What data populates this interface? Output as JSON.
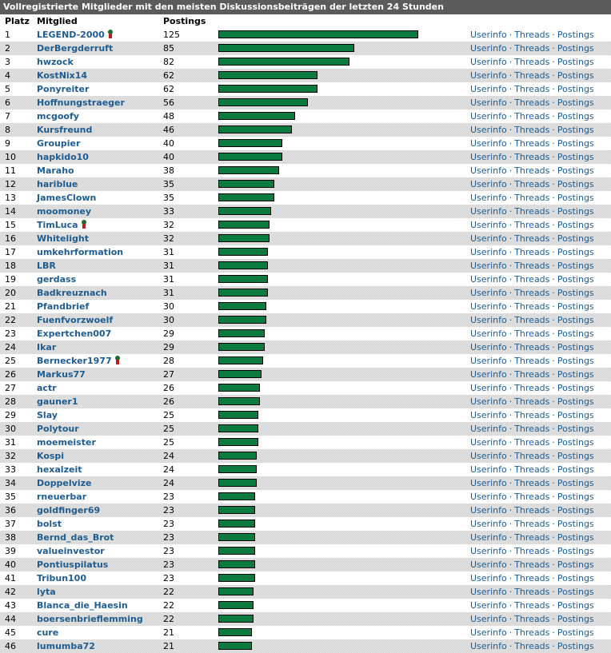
{
  "header": {
    "title": "Vollregistrierte Mitglieder mit den meisten Diskussionsbeiträgen der letzten 24 Stunden",
    "col_rank": "Platz",
    "col_member": "Mitglied",
    "col_posts": "Postings"
  },
  "links": {
    "userinfo": "Userinfo",
    "threads": "Threads",
    "postings": "Postings",
    "separator": "·"
  },
  "colors": {
    "bar": "#0a7a3f",
    "link": "#1f5c8f",
    "title_bg": "#5b5b5b"
  },
  "award_icon": "medal-ribbon-icon",
  "rows": [
    {
      "rank": "1",
      "name": "LEGEND-2000",
      "posts": 125,
      "award": true
    },
    {
      "rank": "2",
      "name": "DerBergderruft",
      "posts": 85,
      "award": false
    },
    {
      "rank": "3",
      "name": "hwzock",
      "posts": 82,
      "award": false
    },
    {
      "rank": "4",
      "name": "KostNix14",
      "posts": 62,
      "award": false
    },
    {
      "rank": "5",
      "name": "Ponyreiter",
      "posts": 62,
      "award": false
    },
    {
      "rank": "6",
      "name": "Hoffnungstraeger",
      "posts": 56,
      "award": false
    },
    {
      "rank": "7",
      "name": "mcgoofy",
      "posts": 48,
      "award": false
    },
    {
      "rank": "8",
      "name": "Kursfreund",
      "posts": 46,
      "award": false
    },
    {
      "rank": "9",
      "name": "Groupier",
      "posts": 40,
      "award": false
    },
    {
      "rank": "10",
      "name": "hapkido10",
      "posts": 40,
      "award": false
    },
    {
      "rank": "11",
      "name": "Maraho",
      "posts": 38,
      "award": false
    },
    {
      "rank": "12",
      "name": "hariblue",
      "posts": 35,
      "award": false
    },
    {
      "rank": "13",
      "name": "JamesClown",
      "posts": 35,
      "award": false
    },
    {
      "rank": "14",
      "name": "moomoney",
      "posts": 33,
      "award": false
    },
    {
      "rank": "15",
      "name": "TimLuca",
      "posts": 32,
      "award": true
    },
    {
      "rank": "16",
      "name": "Whitelight",
      "posts": 32,
      "award": false
    },
    {
      "rank": "17",
      "name": "umkehrformation",
      "posts": 31,
      "award": false
    },
    {
      "rank": "18",
      "name": "LBR",
      "posts": 31,
      "award": false
    },
    {
      "rank": "19",
      "name": "gerdass",
      "posts": 31,
      "award": false
    },
    {
      "rank": "20",
      "name": "Badkreuznach",
      "posts": 31,
      "award": false
    },
    {
      "rank": "21",
      "name": "Pfandbrief",
      "posts": 30,
      "award": false
    },
    {
      "rank": "22",
      "name": "Fuenfvorzwoelf",
      "posts": 30,
      "award": false
    },
    {
      "rank": "23",
      "name": "Expertchen007",
      "posts": 29,
      "award": false
    },
    {
      "rank": "24",
      "name": "Ikar",
      "posts": 29,
      "award": false
    },
    {
      "rank": "25",
      "name": "Bernecker1977",
      "posts": 28,
      "award": true
    },
    {
      "rank": "26",
      "name": "Markus77",
      "posts": 27,
      "award": false
    },
    {
      "rank": "27",
      "name": "actr",
      "posts": 26,
      "award": false
    },
    {
      "rank": "28",
      "name": "gauner1",
      "posts": 26,
      "award": false
    },
    {
      "rank": "29",
      "name": "Slay",
      "posts": 25,
      "award": false
    },
    {
      "rank": "30",
      "name": "Polytour",
      "posts": 25,
      "award": false
    },
    {
      "rank": "31",
      "name": "moemeister",
      "posts": 25,
      "award": false
    },
    {
      "rank": "32",
      "name": "Kospi",
      "posts": 24,
      "award": false
    },
    {
      "rank": "33",
      "name": "hexalzeit",
      "posts": 24,
      "award": false
    },
    {
      "rank": "34",
      "name": "Doppelvize",
      "posts": 24,
      "award": false
    },
    {
      "rank": "35",
      "name": "rneuerbar",
      "posts": 23,
      "award": false
    },
    {
      "rank": "36",
      "name": "goldfinger69",
      "posts": 23,
      "award": false
    },
    {
      "rank": "37",
      "name": "bolst",
      "posts": 23,
      "award": false
    },
    {
      "rank": "38",
      "name": "Bernd_das_Brot",
      "posts": 23,
      "award": false
    },
    {
      "rank": "39",
      "name": "valueinvestor",
      "posts": 23,
      "award": false
    },
    {
      "rank": "40",
      "name": "Pontiuspilatus",
      "posts": 23,
      "award": false
    },
    {
      "rank": "41",
      "name": "Tribun100",
      "posts": 23,
      "award": false
    },
    {
      "rank": "42",
      "name": "lyta",
      "posts": 22,
      "award": false
    },
    {
      "rank": "43",
      "name": "Blanca_die_Haesin",
      "posts": 22,
      "award": false
    },
    {
      "rank": "44",
      "name": "boersenbrieflemming",
      "posts": 22,
      "award": false
    },
    {
      "rank": "45",
      "name": "cure",
      "posts": 21,
      "award": false
    },
    {
      "rank": "46",
      "name": "lumumba72",
      "posts": 21,
      "award": false
    }
  ]
}
